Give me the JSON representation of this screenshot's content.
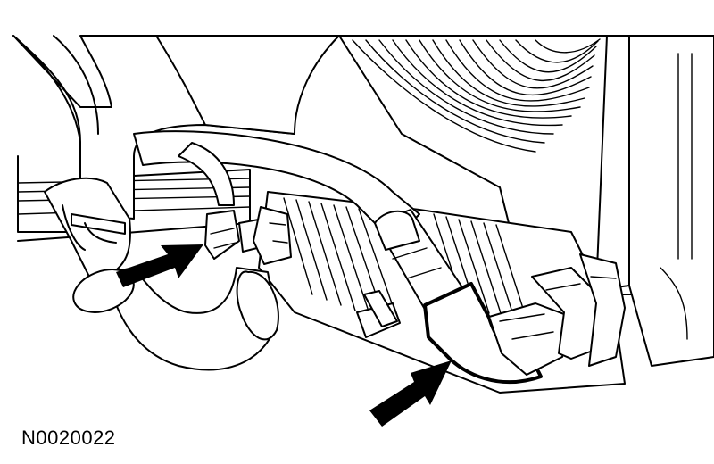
{
  "figure": {
    "id_label": "N0020022"
  },
  "callouts": [
    {
      "name": "upper-fitting-arrow",
      "icon": "arrow-icon",
      "color": "#000000"
    },
    {
      "name": "lower-fitting-arrow",
      "icon": "arrow-icon",
      "color": "#000000"
    }
  ],
  "colors": {
    "line": "#000000",
    "fill": "#ffffff"
  }
}
